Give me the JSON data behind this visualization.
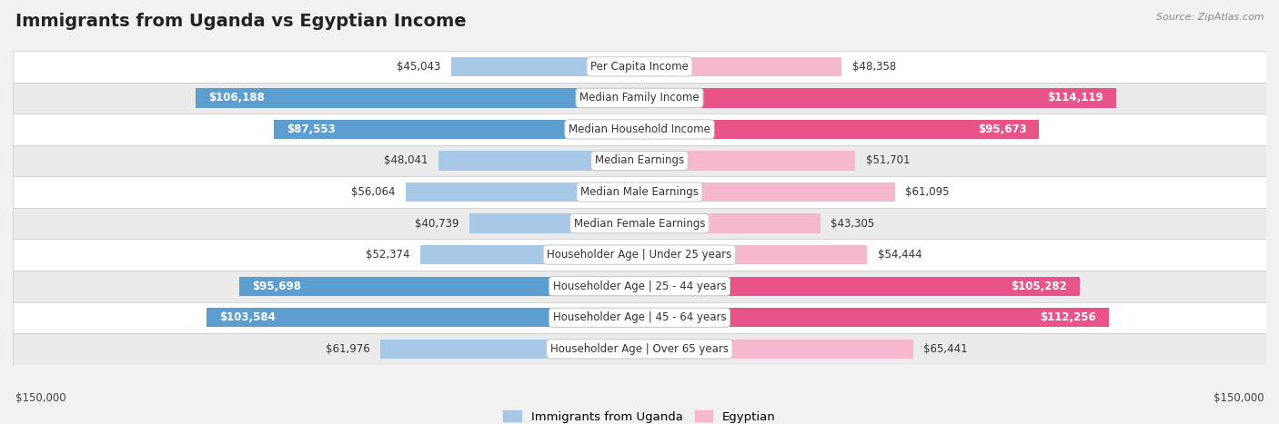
{
  "title": "Immigrants from Uganda vs Egyptian Income",
  "source": "Source: ZipAtlas.com",
  "categories": [
    "Per Capita Income",
    "Median Family Income",
    "Median Household Income",
    "Median Earnings",
    "Median Male Earnings",
    "Median Female Earnings",
    "Householder Age | Under 25 years",
    "Householder Age | 25 - 44 years",
    "Householder Age | 45 - 64 years",
    "Householder Age | Over 65 years"
  ],
  "uganda_values": [
    45043,
    106188,
    87553,
    48041,
    56064,
    40739,
    52374,
    95698,
    103584,
    61976
  ],
  "egyptian_values": [
    48358,
    114119,
    95673,
    51701,
    61095,
    43305,
    54444,
    105282,
    112256,
    65441
  ],
  "uganda_labels": [
    "$45,043",
    "$106,188",
    "$87,553",
    "$48,041",
    "$56,064",
    "$40,739",
    "$52,374",
    "$95,698",
    "$103,584",
    "$61,976"
  ],
  "egyptian_labels": [
    "$48,358",
    "$114,119",
    "$95,673",
    "$51,701",
    "$61,095",
    "$43,305",
    "$54,444",
    "$105,282",
    "$112,256",
    "$65,441"
  ],
  "uganda_color_light": "#a8c8e8",
  "uganda_color_dark": "#5b9ecf",
  "egyptian_color_light": "#f5b8ce",
  "egyptian_color_dark": "#e8538a",
  "inside_label_threshold": 75000,
  "max_value": 150000,
  "bar_height": 0.62,
  "background_color": "#f2f2f2",
  "row_colors": [
    "#ffffff",
    "#ebebeb"
  ],
  "legend_uganda": "Immigrants from Uganda",
  "legend_egyptian": "Egyptian",
  "xlabel_left": "$150,000",
  "xlabel_right": "$150,000",
  "title_fontsize": 14,
  "label_fontsize": 8.5,
  "cat_fontsize": 8.5,
  "source_fontsize": 8
}
